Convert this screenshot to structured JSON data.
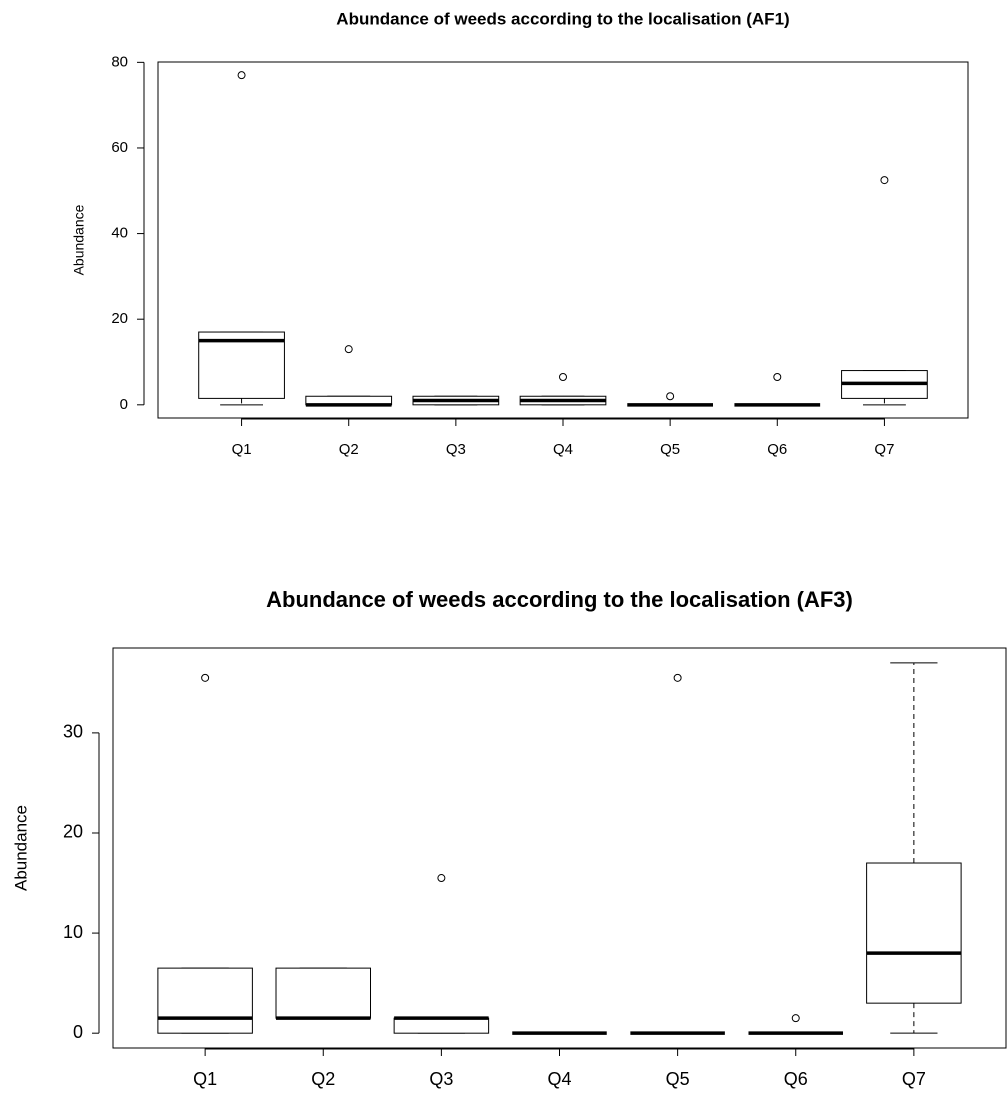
{
  "chart_data": [
    {
      "type": "box",
      "title": "Abundance of weeds according to the localisation (AF1)",
      "ylabel": "Abundance",
      "categories": [
        "Q1",
        "Q2",
        "Q3",
        "Q4",
        "Q5",
        "Q6",
        "Q7"
      ],
      "boxes": [
        {
          "min": 0,
          "q1": 1.5,
          "median": 15,
          "q3": 17,
          "max": 17,
          "outliers": [
            77
          ]
        },
        {
          "min": 0,
          "q1": 0,
          "median": 0,
          "q3": 2,
          "max": 2,
          "outliers": [
            13
          ]
        },
        {
          "min": 0,
          "q1": 0,
          "median": 1,
          "q3": 2,
          "max": 2,
          "outliers": []
        },
        {
          "min": 0,
          "q1": 0,
          "median": 1,
          "q3": 2,
          "max": 2,
          "outliers": [
            6.5
          ]
        },
        {
          "min": 0,
          "q1": 0,
          "median": 0,
          "q3": 0,
          "max": 0,
          "outliers": [
            2
          ]
        },
        {
          "min": 0,
          "q1": 0,
          "median": 0,
          "q3": 0,
          "max": 0,
          "outliers": [
            6.5
          ]
        },
        {
          "min": 0,
          "q1": 1.5,
          "median": 5,
          "q3": 8,
          "max": 8,
          "outliers": [
            52.5
          ]
        }
      ],
      "ylim": [
        -3.08,
        80.08
      ],
      "yticks": [
        0,
        20,
        40,
        60,
        80
      ],
      "color": "#000000"
    },
    {
      "type": "box",
      "title": "Abundance of weeds according to the localisation (AF3)",
      "ylabel": "Abundance",
      "categories": [
        "Q1",
        "Q2",
        "Q3",
        "Q4",
        "Q5",
        "Q6",
        "Q7"
      ],
      "boxes": [
        {
          "min": 0,
          "q1": 0,
          "median": 1.5,
          "q3": 6.5,
          "max": 6.5,
          "outliers": [
            35.5
          ]
        },
        {
          "min": 1.5,
          "q1": 1.5,
          "median": 1.5,
          "q3": 6.5,
          "max": 6.5,
          "outliers": []
        },
        {
          "min": 0,
          "q1": 0,
          "median": 1.5,
          "q3": 1.5,
          "max": 1.5,
          "outliers": [
            15.5
          ]
        },
        {
          "min": 0,
          "q1": 0,
          "median": 0,
          "q3": 0,
          "max": 0,
          "outliers": []
        },
        {
          "min": 0,
          "q1": 0,
          "median": 0,
          "q3": 0,
          "max": 0,
          "outliers": [
            35.5
          ]
        },
        {
          "min": 0,
          "q1": 0,
          "median": 0,
          "q3": 0,
          "max": 0,
          "outliers": [
            1.5
          ]
        },
        {
          "min": 0,
          "q1": 3,
          "median": 8,
          "q3": 17,
          "max": 37,
          "outliers": []
        }
      ],
      "ylim": [
        -1.48,
        38.48
      ],
      "yticks": [
        0,
        10,
        20,
        30
      ],
      "color": "#000000"
    }
  ]
}
